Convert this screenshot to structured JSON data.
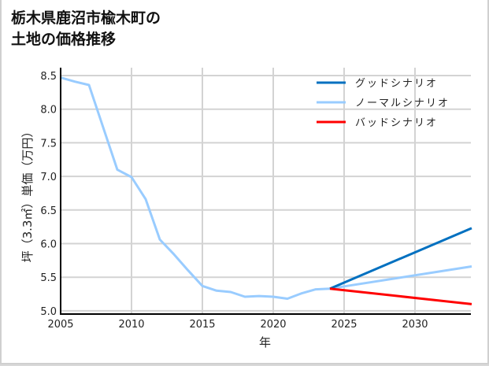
{
  "title": "栃木県鹿沼市楡木町の\n土地の価格推移",
  "chart_data": {
    "type": "line",
    "title": "栃木県鹿沼市楡木町の土地の価格推移",
    "xlabel": "年",
    "ylabel": "坪（3.3㎡）単価（万円）",
    "xlim": [
      2005,
      2034
    ],
    "ylim": [
      4.95,
      8.55
    ],
    "xticks": [
      2005,
      2010,
      2015,
      2020,
      2025,
      2030
    ],
    "yticks": [
      5.0,
      5.5,
      6.0,
      6.5,
      7.0,
      7.5,
      8.0,
      8.5
    ],
    "grid": true,
    "legend_position": "upper right",
    "series": [
      {
        "name": "グッドシナリオ",
        "color": "#0070c0",
        "x": [
          2024,
          2034
        ],
        "values": [
          5.33,
          6.23
        ]
      },
      {
        "name": "ノーマルシナリオ",
        "color": "#99ccff",
        "x": [
          2005,
          2006,
          2007,
          2008,
          2009,
          2010,
          2011,
          2012,
          2013,
          2014,
          2015,
          2016,
          2017,
          2018,
          2019,
          2020,
          2021,
          2022,
          2023,
          2024,
          2034
        ],
        "values": [
          8.47,
          8.41,
          8.36,
          7.73,
          7.1,
          6.99,
          6.66,
          6.06,
          5.84,
          5.6,
          5.37,
          5.3,
          5.28,
          5.21,
          5.22,
          5.21,
          5.18,
          5.26,
          5.32,
          5.33,
          5.66
        ]
      },
      {
        "name": "バッドシナリオ",
        "color": "#ff0000",
        "x": [
          2024,
          2034
        ],
        "values": [
          5.33,
          5.1
        ]
      }
    ]
  }
}
